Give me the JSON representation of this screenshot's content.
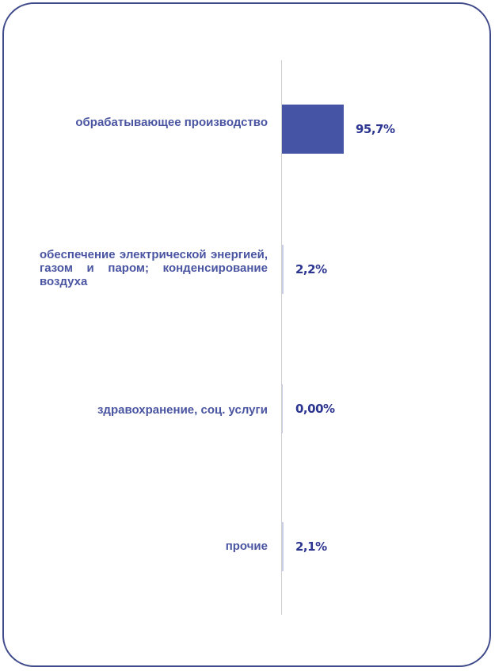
{
  "chart_data": {
    "type": "bar",
    "orientation": "horizontal",
    "categories": [
      "обрабатывающее производство",
      "обеспечение электрической энергией, газом и паром; конденсирование воздуха",
      "здравохранение, соц. услуги",
      "прочие"
    ],
    "values": [
      95.7,
      2.2,
      0.0,
      2.1
    ],
    "value_labels": [
      "95,7%",
      "2,2%",
      "0,00%",
      "2,1%"
    ],
    "xlim": [
      0,
      100
    ],
    "grid": false,
    "bar_color": "#4654a5",
    "label_color": "#4a55a2"
  }
}
